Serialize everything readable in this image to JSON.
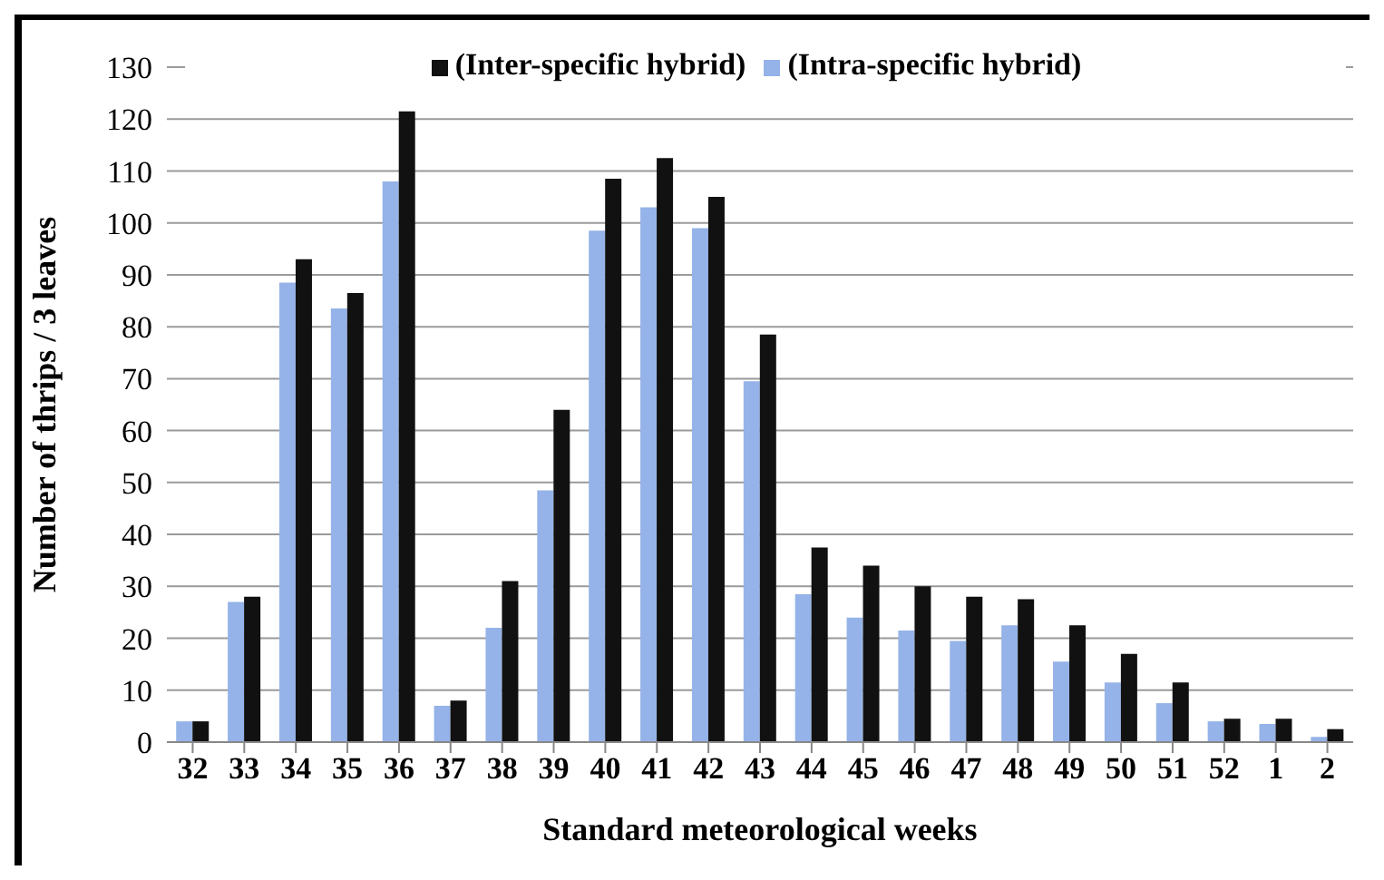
{
  "chart_data": {
    "type": "bar",
    "xlabel": "Standard meteorological weeks",
    "ylabel": "Number of thrips / 3 leaves",
    "categories": [
      "32",
      "33",
      "34",
      "35",
      "36",
      "37",
      "38",
      "39",
      "40",
      "41",
      "42",
      "43",
      "44",
      "45",
      "46",
      "47",
      "48",
      "49",
      "50",
      "51",
      "52",
      "1",
      "2"
    ],
    "series": [
      {
        "name": "(Intra-specific hybrid)",
        "color": "#95b3e8",
        "values": [
          4,
          27,
          88.5,
          83.5,
          108,
          7,
          22,
          48.5,
          98.5,
          103,
          99,
          69.5,
          28.5,
          24,
          21.5,
          19.5,
          22.5,
          15.5,
          11.5,
          7.5,
          4,
          3.5,
          1
        ]
      },
      {
        "name": "(Inter-specific hybrid)",
        "color": "#111111",
        "values": [
          4,
          28,
          93,
          86.5,
          121.5,
          8,
          31,
          64,
          108.5,
          112.5,
          105,
          78.5,
          37.5,
          34,
          30,
          28,
          27.5,
          22.5,
          17,
          11.5,
          4.5,
          4.5,
          2.5
        ]
      }
    ],
    "ylim": [
      0,
      130
    ],
    "yticks": [
      0,
      10,
      20,
      30,
      40,
      50,
      60,
      70,
      80,
      90,
      100,
      110,
      120,
      130
    ],
    "grid": "y",
    "legend": "top"
  }
}
